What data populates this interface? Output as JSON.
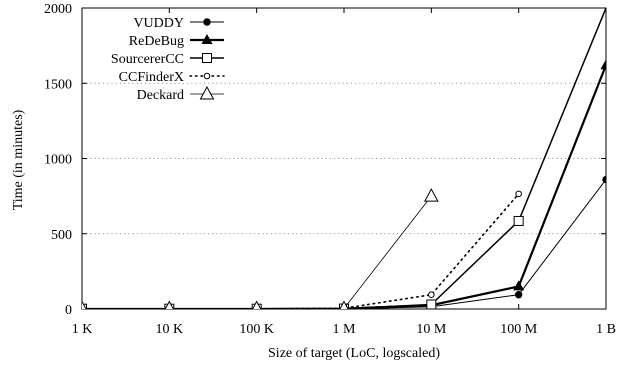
{
  "chart_data": {
    "type": "line",
    "title": "",
    "xlabel": "Size of target (LoC, logscaled)",
    "ylabel": "Time (in minutes)",
    "x_scale": "log",
    "x": [
      1000,
      10000,
      100000,
      1000000,
      10000000,
      100000000,
      1000000000
    ],
    "x_tick_labels": [
      "1 K",
      "10 K",
      "100 K",
      "1 M",
      "10 M",
      "100 M",
      "1 B"
    ],
    "y_ticks": [
      0,
      500,
      1000,
      1500,
      2000
    ],
    "y_tick_labels": [
      "0",
      "500",
      "1000",
      "1500",
      "2000"
    ],
    "ylim": [
      0,
      2000
    ],
    "grid": "horizontal dotted",
    "legend_position": "top-left",
    "series": [
      {
        "name": "VUDDY",
        "marker": "filled-circle",
        "line": "solid",
        "stroke_width": 1,
        "values": [
          0,
          0,
          0,
          1,
          15,
          95,
          860
        ]
      },
      {
        "name": "ReDeBug",
        "marker": "filled-triangle",
        "line": "solid",
        "stroke_width": 2.2,
        "values": [
          0,
          0,
          0,
          2,
          25,
          150,
          1620
        ]
      },
      {
        "name": "SourcererCC",
        "marker": "open-square",
        "line": "solid",
        "stroke_width": 1.5,
        "values": [
          2,
          2,
          2,
          3,
          30,
          585,
          2000
        ]
      },
      {
        "name": "CCFinderX",
        "marker": "open-circle",
        "line": "dotted",
        "stroke_width": 1.6,
        "values": [
          1,
          1,
          1,
          5,
          95,
          765,
          null
        ]
      },
      {
        "name": "Deckard",
        "marker": "open-triangle",
        "line": "solid",
        "stroke_width": 0.8,
        "values": [
          3,
          3,
          3,
          3,
          750,
          null,
          null
        ]
      }
    ]
  }
}
